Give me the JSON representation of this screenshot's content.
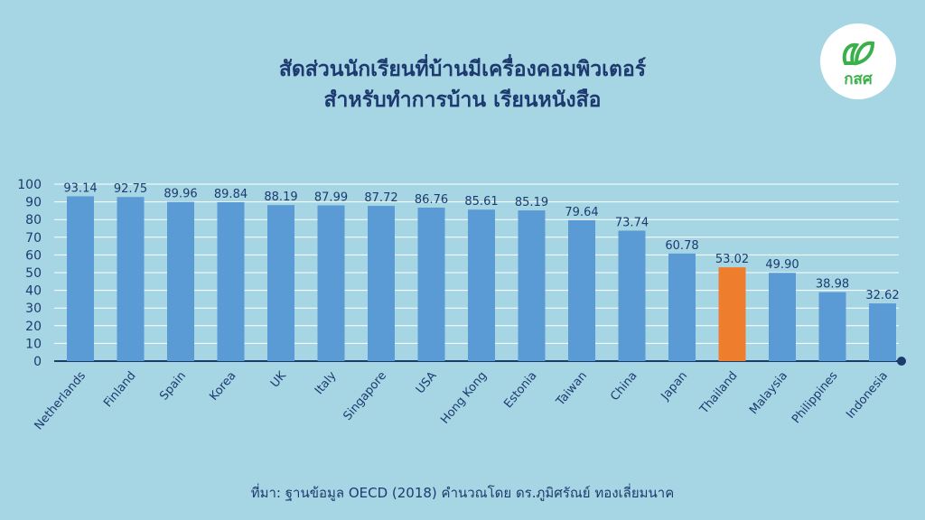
{
  "title_line1": "สัดส่วนนักเรียนที่บ้านมีเครื่องคอมพิวเตอร์",
  "title_line2": "สำหรับทำการบ้าน เรียนหนังสือ",
  "logo_text": "กสศ",
  "source": "ที่มา: ฐานข้อมูล OECD (2018) คำนวณโดย ดร.ภูมิศรัณย์ ทองเลี่ยมนาค",
  "colors": {
    "bar": "#5b9bd5",
    "highlight": "#ee7d2d",
    "text": "#1d3a70",
    "grid": "#ffffff",
    "logo": "#3ab04a"
  },
  "chart_data": {
    "type": "bar",
    "categories": [
      "Netherlands",
      "Finland",
      "Spain",
      "Korea",
      "UK",
      "Italy",
      "Singapore",
      "USA",
      "Hong Kong",
      "Estonia",
      "Taiwan",
      "China",
      "Japan",
      "Thailand",
      "Malaysia",
      "Philippines",
      "Indonesia"
    ],
    "values": [
      93.14,
      92.75,
      89.96,
      89.84,
      88.19,
      87.99,
      87.72,
      86.76,
      85.61,
      85.19,
      79.64,
      73.74,
      60.78,
      53.02,
      49.9,
      38.98,
      32.62
    ],
    "value_labels": [
      "93.14",
      "92.75",
      "89.96",
      "89.84",
      "88.19",
      "87.99",
      "87.72",
      "86.76",
      "85.61",
      "85.19",
      "79.64",
      "73.74",
      "60.78",
      "53.02",
      "49.90",
      "38.98",
      "32.62"
    ],
    "highlight": "Thailand",
    "yticks": [
      "0",
      "10",
      "20",
      "30",
      "40",
      "50",
      "60",
      "70",
      "80",
      "90",
      "100"
    ],
    "ylim": [
      0,
      100
    ],
    "grid": true
  }
}
